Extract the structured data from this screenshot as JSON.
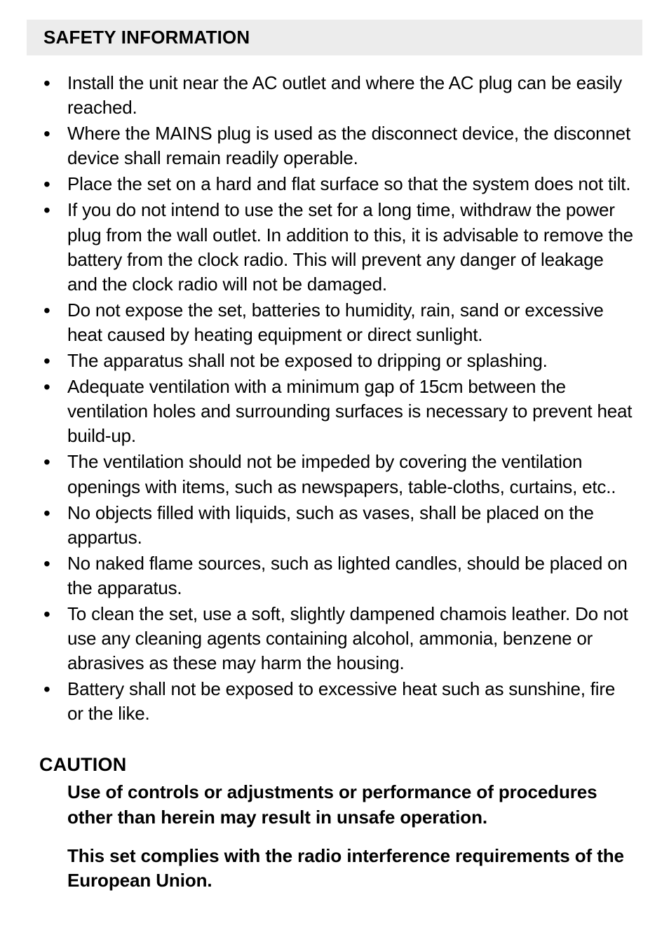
{
  "page": {
    "background_color": "#ffffff",
    "text_color": "#000000",
    "header_bg": "#ececec",
    "body_font_size_pt": 20,
    "heading_font_size_pt": 20,
    "font_family": "Helvetica Condensed"
  },
  "safety": {
    "heading": "SAFETY INFORMATION",
    "items": [
      "Install the unit near the AC outlet and where the AC plug can be easily reached.",
      "Where the MAINS plug is used as the disconnect device, the disconnet device shall remain readily operable.",
      "Place the set on a hard and flat surface so that the system does not tilt.",
      "If you do not intend to use the set for a long time, withdraw the power plug from the wall outlet. In addition to this, it is advisable to remove the battery from the clock radio. This will prevent any danger of leakage and the clock radio will not be damaged.",
      "Do not expose the set, batteries to humidity, rain, sand or excessive heat caused by heating equipment or direct sunlight.",
      "The apparatus shall not be exposed to dripping or splashing.",
      "Adequate ventilation with a minimum gap of 15cm between the ventilation holes and surrounding surfaces is necessary to prevent heat build-up.",
      "The ventilation should not be impeded by covering the ventilation openings with items, such as newspapers, table-cloths, curtains, etc..",
      "No objects filled with liquids, such as vases, shall be placed on the appartus.",
      "No naked flame sources, such as lighted candles, should be placed on the apparatus.",
      "To clean the set, use a soft, slightly dampened chamois leather. Do not use any cleaning agents containing alcohol, ammonia, benzene or abrasives as these may harm the housing.",
      "Battery shall not be exposed to excessive heat such as sunshine, fire or the like."
    ]
  },
  "caution": {
    "heading": "CAUTION",
    "paragraphs": [
      "Use of controls or adjustments or performance of procedures other than herein may result in unsafe operation.",
      "This set complies with the radio interference requirements of the European Union."
    ]
  }
}
